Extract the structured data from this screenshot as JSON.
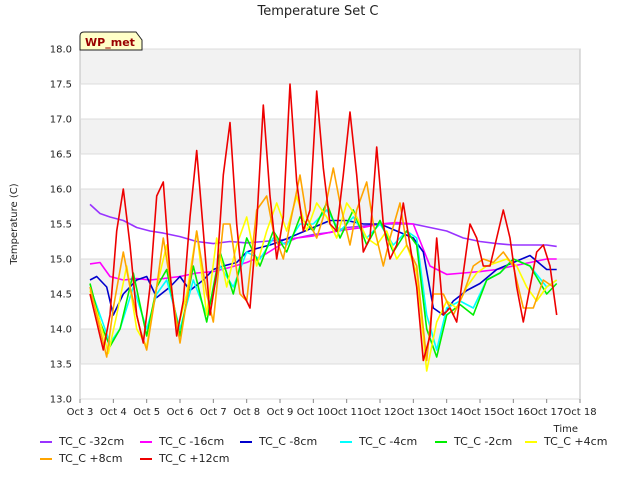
{
  "chart_data": {
    "type": "line",
    "title": "Temperature Set C",
    "xlabel": "Time",
    "ylabel": "Temperature (C)",
    "ylim": [
      13.0,
      18.0
    ],
    "xlim": [
      3,
      18
    ],
    "y_ticks": [
      "13.0",
      "13.5",
      "14.0",
      "14.5",
      "15.0",
      "15.5",
      "16.0",
      "16.5",
      "17.0",
      "17.5",
      "18.0"
    ],
    "x_ticks": [
      "Oct 3",
      "Oct 4",
      "Oct 5",
      "Oct 6",
      "Oct 7",
      "Oct 8",
      "Oct 9",
      "Oct 10",
      "Oct 11",
      "Oct 12",
      "Oct 13",
      "Oct 14",
      "Oct 15",
      "Oct 16",
      "Oct 17",
      "Oct 18"
    ],
    "x_tick_values": [
      3,
      4,
      5,
      6,
      7,
      8,
      9,
      10,
      11,
      12,
      13,
      14,
      15,
      16,
      17,
      18
    ],
    "annotation": "WP_met",
    "grid": true,
    "legend_placement": "bottom",
    "series": [
      {
        "name": "TC_C -32cm",
        "color": "#9933ff",
        "x": [
          3.3,
          3.6,
          3.9,
          4.3,
          4.7,
          5.1,
          5.5,
          6.0,
          6.5,
          7.0,
          7.5,
          8.0,
          8.5,
          9.0,
          9.5,
          10.0,
          10.5,
          11.0,
          11.5,
          12.0,
          12.5,
          13.0,
          13.5,
          14.0,
          14.5,
          15.0,
          15.5,
          16.0,
          16.5,
          17.0,
          17.3
        ],
        "values": [
          15.78,
          15.65,
          15.6,
          15.55,
          15.45,
          15.4,
          15.37,
          15.32,
          15.25,
          15.22,
          15.25,
          15.23,
          15.25,
          15.27,
          15.3,
          15.35,
          15.38,
          15.45,
          15.47,
          15.5,
          15.5,
          15.5,
          15.45,
          15.4,
          15.3,
          15.25,
          15.22,
          15.2,
          15.2,
          15.2,
          15.18
        ]
      },
      {
        "name": "TC_C -16cm",
        "color": "#ff00ff",
        "x": [
          3.3,
          3.6,
          3.9,
          4.3,
          4.7,
          5.1,
          5.5,
          6.0,
          6.5,
          7.0,
          7.5,
          8.0,
          8.5,
          9.0,
          9.5,
          10.0,
          10.5,
          11.0,
          11.5,
          12.0,
          12.5,
          13.0,
          13.5,
          14.0,
          14.5,
          15.0,
          15.5,
          16.0,
          16.5,
          17.0,
          17.3
        ],
        "values": [
          14.93,
          14.95,
          14.75,
          14.7,
          14.72,
          14.7,
          14.72,
          14.75,
          14.8,
          14.82,
          14.88,
          14.95,
          15.05,
          15.2,
          15.3,
          15.33,
          15.38,
          15.42,
          15.45,
          15.5,
          15.52,
          15.5,
          14.9,
          14.78,
          14.8,
          14.82,
          14.85,
          14.9,
          14.95,
          15.0,
          15.0
        ]
      },
      {
        "name": "TC_C -8cm",
        "color": "#0000cc",
        "x": [
          3.3,
          3.5,
          3.8,
          4.0,
          4.3,
          4.7,
          5.0,
          5.3,
          5.7,
          6.0,
          6.3,
          6.7,
          7.0,
          7.3,
          7.7,
          8.0,
          8.3,
          8.7,
          9.0,
          9.5,
          10.0,
          10.5,
          11.0,
          11.5,
          12.0,
          12.5,
          13.0,
          13.3,
          13.6,
          13.9,
          14.2,
          14.6,
          15.0,
          15.5,
          16.0,
          16.5,
          17.0,
          17.3
        ],
        "values": [
          14.7,
          14.75,
          14.6,
          14.2,
          14.5,
          14.7,
          14.75,
          14.45,
          14.6,
          14.75,
          14.55,
          14.7,
          14.85,
          14.9,
          14.95,
          15.1,
          15.15,
          15.2,
          15.25,
          15.35,
          15.45,
          15.55,
          15.55,
          15.5,
          15.5,
          15.4,
          15.3,
          15.1,
          14.3,
          14.2,
          14.4,
          14.55,
          14.65,
          14.85,
          14.95,
          15.05,
          14.85,
          14.85
        ]
      },
      {
        "name": "TC_C -4cm",
        "color": "#00ffff",
        "x": [
          3.3,
          3.6,
          3.9,
          4.2,
          4.6,
          5.0,
          5.3,
          5.6,
          6.0,
          6.4,
          6.8,
          7.2,
          7.6,
          8.0,
          8.4,
          8.8,
          9.2,
          9.6,
          10.0,
          10.4,
          10.8,
          11.2,
          11.6,
          12.0,
          12.4,
          12.8,
          13.1,
          13.4,
          13.7,
          14.0,
          14.4,
          14.8,
          15.2,
          15.6,
          16.0,
          16.5,
          17.0,
          17.3
        ],
        "values": [
          14.6,
          14.2,
          13.8,
          14.0,
          14.6,
          14.0,
          14.5,
          14.7,
          14.0,
          14.7,
          14.2,
          14.9,
          14.6,
          15.1,
          15.0,
          15.3,
          15.2,
          15.5,
          15.5,
          15.7,
          15.4,
          15.6,
          15.3,
          15.5,
          15.2,
          15.4,
          15.3,
          14.2,
          13.7,
          14.3,
          14.4,
          14.3,
          14.7,
          14.8,
          15.0,
          14.9,
          14.6,
          14.7
        ]
      },
      {
        "name": "TC_C -2cm",
        "color": "#00ee00",
        "x": [
          3.3,
          3.6,
          3.9,
          4.2,
          4.6,
          5.0,
          5.3,
          5.6,
          6.0,
          6.4,
          6.8,
          7.2,
          7.6,
          8.0,
          8.4,
          8.8,
          9.2,
          9.6,
          10.0,
          10.4,
          10.8,
          11.2,
          11.6,
          12.0,
          12.4,
          12.8,
          13.1,
          13.4,
          13.7,
          14.0,
          14.4,
          14.8,
          15.2,
          15.6,
          16.0,
          16.5,
          17.0,
          17.3
        ],
        "values": [
          14.65,
          14.1,
          13.75,
          14.0,
          14.8,
          13.9,
          14.6,
          14.85,
          13.9,
          14.9,
          14.1,
          15.1,
          14.5,
          15.3,
          14.9,
          15.4,
          15.1,
          15.6,
          15.4,
          15.8,
          15.3,
          15.7,
          15.2,
          15.55,
          15.1,
          15.4,
          15.2,
          14.0,
          13.6,
          14.2,
          14.35,
          14.2,
          14.7,
          14.8,
          15.0,
          14.9,
          14.5,
          14.65
        ]
      },
      {
        "name": "TC_C +4cm",
        "color": "#ffff00",
        "x": [
          3.3,
          3.6,
          3.85,
          4.1,
          4.4,
          4.7,
          5.0,
          5.3,
          5.6,
          5.9,
          6.2,
          6.5,
          6.8,
          7.1,
          7.4,
          7.7,
          8.0,
          8.3,
          8.6,
          8.9,
          9.2,
          9.5,
          9.8,
          10.1,
          10.4,
          10.7,
          11.0,
          11.3,
          11.6,
          11.9,
          12.2,
          12.5,
          12.8,
          13.1,
          13.4,
          13.7,
          14.0,
          14.3,
          14.6,
          14.9,
          15.2,
          15.5,
          15.8,
          16.1,
          16.4,
          16.7,
          17.0,
          17.3
        ],
        "values": [
          14.55,
          14.1,
          13.65,
          14.2,
          14.9,
          14.0,
          13.75,
          14.6,
          15.2,
          13.95,
          14.5,
          15.4,
          14.2,
          15.3,
          14.6,
          15.2,
          15.6,
          14.9,
          15.4,
          15.8,
          15.4,
          15.9,
          15.4,
          15.8,
          15.6,
          15.3,
          15.8,
          15.6,
          15.3,
          15.2,
          15.4,
          15.0,
          15.2,
          14.8,
          13.4,
          14.1,
          14.4,
          14.3,
          14.6,
          14.8,
          14.9,
          14.95,
          15.0,
          14.9,
          14.6,
          14.4,
          14.6,
          14.7
        ]
      },
      {
        "name": "TC_C +8cm",
        "color": "#ffa500",
        "x": [
          3.3,
          3.6,
          3.8,
          4.0,
          4.3,
          4.5,
          4.8,
          5.0,
          5.3,
          5.5,
          5.8,
          6.0,
          6.3,
          6.5,
          6.8,
          7.0,
          7.3,
          7.5,
          7.8,
          8.0,
          8.3,
          8.6,
          8.8,
          9.1,
          9.3,
          9.6,
          9.8,
          10.1,
          10.3,
          10.6,
          10.8,
          11.1,
          11.3,
          11.6,
          11.8,
          12.1,
          12.3,
          12.6,
          12.8,
          13.1,
          13.4,
          13.6,
          13.9,
          14.2,
          14.5,
          14.8,
          15.1,
          15.4,
          15.7,
          16.0,
          16.3,
          16.6,
          16.9,
          17.2
        ],
        "values": [
          14.6,
          14.0,
          13.6,
          14.3,
          15.1,
          14.6,
          14.0,
          13.7,
          14.6,
          15.3,
          14.4,
          13.8,
          14.7,
          15.4,
          14.5,
          14.1,
          15.5,
          15.5,
          14.5,
          14.4,
          15.7,
          15.9,
          15.4,
          15.0,
          15.5,
          16.2,
          15.6,
          15.3,
          15.6,
          16.3,
          15.8,
          15.2,
          15.7,
          16.1,
          15.5,
          14.9,
          15.3,
          15.8,
          15.2,
          14.9,
          13.55,
          14.5,
          14.5,
          14.2,
          14.5,
          14.9,
          15.0,
          14.95,
          15.1,
          14.9,
          14.3,
          14.3,
          14.7,
          14.6
        ]
      },
      {
        "name": "TC_C +12cm",
        "color": "#ee0000",
        "x": [
          3.3,
          3.5,
          3.7,
          3.9,
          4.1,
          4.3,
          4.5,
          4.7,
          4.9,
          5.1,
          5.3,
          5.5,
          5.7,
          5.9,
          6.1,
          6.3,
          6.5,
          6.7,
          6.9,
          7.1,
          7.3,
          7.5,
          7.7,
          7.9,
          8.1,
          8.3,
          8.5,
          8.7,
          8.9,
          9.1,
          9.3,
          9.5,
          9.7,
          9.9,
          10.1,
          10.3,
          10.5,
          10.7,
          10.9,
          11.1,
          11.3,
          11.5,
          11.7,
          11.9,
          12.1,
          12.3,
          12.5,
          12.7,
          12.9,
          13.1,
          13.3,
          13.5,
          13.7,
          13.9,
          14.1,
          14.3,
          14.5,
          14.7,
          14.9,
          15.1,
          15.3,
          15.5,
          15.7,
          15.9,
          16.1,
          16.3,
          16.5,
          16.7,
          16.9,
          17.1,
          17.3
        ],
        "values": [
          14.5,
          14.1,
          13.7,
          14.2,
          15.4,
          16.0,
          15.2,
          14.2,
          13.8,
          14.6,
          15.9,
          16.1,
          14.8,
          13.9,
          14.4,
          15.6,
          16.55,
          15.4,
          14.2,
          14.8,
          16.2,
          16.95,
          15.5,
          14.5,
          14.3,
          15.5,
          17.2,
          15.9,
          15.0,
          15.6,
          17.5,
          16.1,
          15.4,
          15.7,
          17.4,
          16.3,
          15.5,
          15.4,
          16.2,
          17.1,
          16.2,
          15.1,
          15.3,
          16.6,
          15.5,
          15.0,
          15.2,
          15.8,
          15.2,
          14.6,
          13.55,
          13.9,
          15.3,
          14.2,
          14.3,
          14.1,
          14.8,
          15.5,
          15.3,
          14.9,
          14.9,
          15.3,
          15.7,
          15.3,
          14.6,
          14.1,
          14.6,
          15.1,
          15.2,
          14.9,
          14.2
        ]
      }
    ]
  }
}
